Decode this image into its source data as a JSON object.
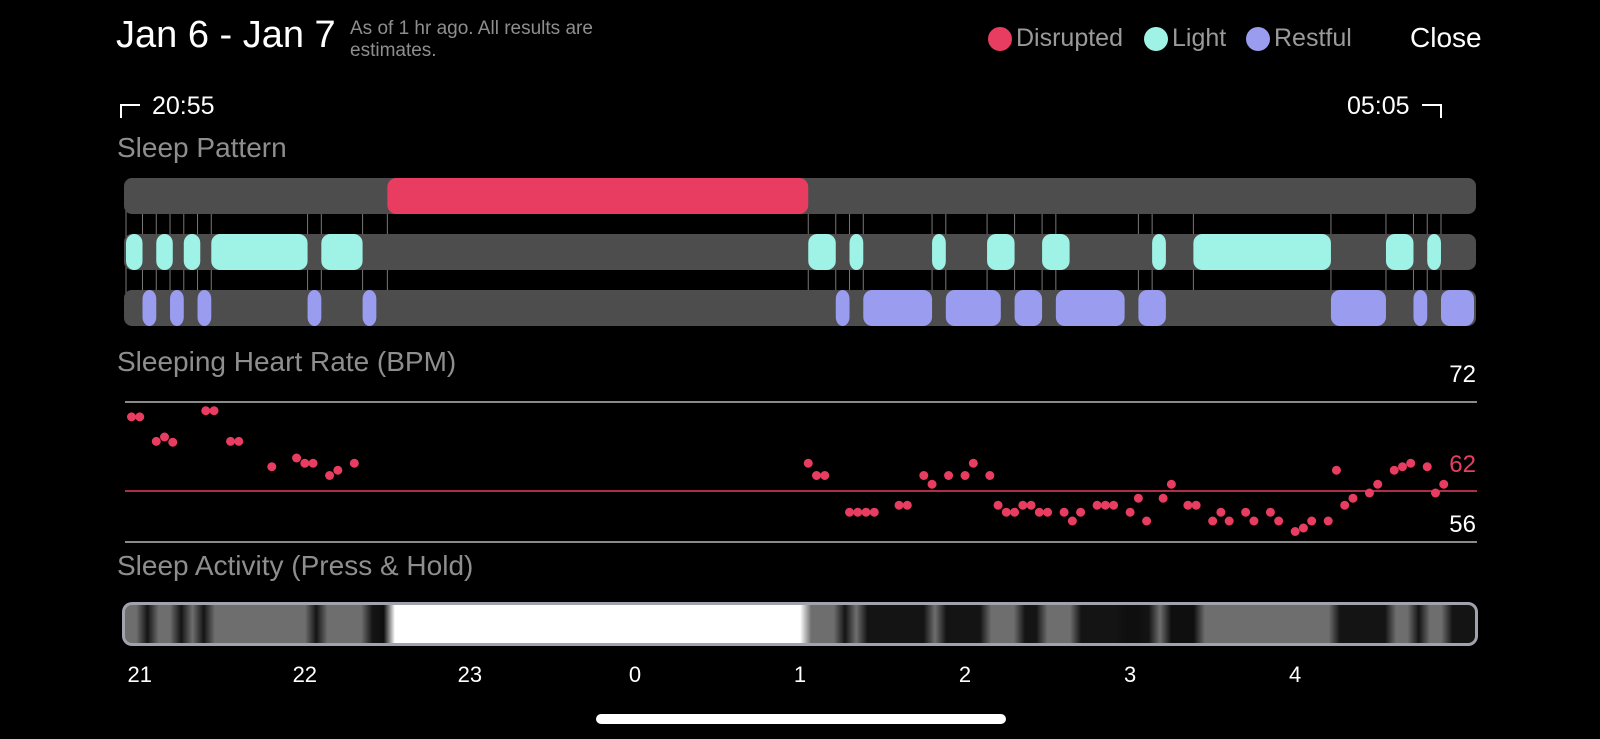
{
  "header": {
    "title": "Jan 6 - Jan 7",
    "subtitle": "As of 1 hr ago. All results are estimates.",
    "close_label": "Close"
  },
  "legend": [
    {
      "label": "Disrupted",
      "color": "#e83d61"
    },
    {
      "label": "Light",
      "color": "#9ef3e6"
    },
    {
      "label": "Restful",
      "color": "#9a9cf0"
    }
  ],
  "range": {
    "start": "20:55",
    "end": "05:05"
  },
  "sleep_pattern": {
    "title": "Sleep Pattern",
    "track_color": "#4d4d4d",
    "segments": [
      {
        "stage": "disrupted",
        "start": "22:30",
        "end": "01:03"
      },
      {
        "stage": "light",
        "start": "20:55",
        "end": "21:01"
      },
      {
        "stage": "light",
        "start": "21:06",
        "end": "21:12"
      },
      {
        "stage": "light",
        "start": "21:16",
        "end": "21:22"
      },
      {
        "stage": "light",
        "start": "21:26",
        "end": "22:01"
      },
      {
        "stage": "light",
        "start": "22:06",
        "end": "22:21"
      },
      {
        "stage": "light",
        "start": "01:03",
        "end": "01:13"
      },
      {
        "stage": "light",
        "start": "01:18",
        "end": "01:23"
      },
      {
        "stage": "light",
        "start": "01:48",
        "end": "01:53"
      },
      {
        "stage": "light",
        "start": "02:08",
        "end": "02:18"
      },
      {
        "stage": "light",
        "start": "02:28",
        "end": "02:38"
      },
      {
        "stage": "light",
        "start": "03:08",
        "end": "03:13"
      },
      {
        "stage": "light",
        "start": "03:23",
        "end": "04:13"
      },
      {
        "stage": "light",
        "start": "04:33",
        "end": "04:43"
      },
      {
        "stage": "light",
        "start": "04:48",
        "end": "04:53"
      },
      {
        "stage": "restful",
        "start": "21:01",
        "end": "21:06"
      },
      {
        "stage": "restful",
        "start": "21:11",
        "end": "21:16"
      },
      {
        "stage": "restful",
        "start": "21:21",
        "end": "21:26"
      },
      {
        "stage": "restful",
        "start": "22:01",
        "end": "22:06"
      },
      {
        "stage": "restful",
        "start": "22:21",
        "end": "22:26"
      },
      {
        "stage": "restful",
        "start": "01:13",
        "end": "01:18"
      },
      {
        "stage": "restful",
        "start": "01:23",
        "end": "01:48"
      },
      {
        "stage": "restful",
        "start": "01:53",
        "end": "02:13"
      },
      {
        "stage": "restful",
        "start": "02:18",
        "end": "02:28"
      },
      {
        "stage": "restful",
        "start": "02:33",
        "end": "02:58"
      },
      {
        "stage": "restful",
        "start": "03:03",
        "end": "03:13"
      },
      {
        "stage": "restful",
        "start": "04:13",
        "end": "04:33"
      },
      {
        "stage": "restful",
        "start": "04:43",
        "end": "04:48"
      },
      {
        "stage": "restful",
        "start": "04:53",
        "end": "05:05"
      }
    ]
  },
  "heart_rate": {
    "title": "Sleeping Heart Rate (BPM)",
    "max_label": "72",
    "avg_label": "62",
    "min_label": "56"
  },
  "chart_data": {
    "type": "scatter",
    "title": "Sleeping Heart Rate (BPM)",
    "xlabel": "",
    "ylabel": "",
    "x_unit": "hour of day",
    "ylim": [
      56,
      72
    ],
    "reference_lines": [
      72,
      62,
      56
    ],
    "x": [
      20.95,
      21.0,
      21.1,
      21.15,
      21.2,
      21.4,
      21.45,
      21.55,
      21.6,
      21.8,
      21.95,
      22.0,
      22.05,
      22.15,
      22.2,
      22.3,
      1.05,
      1.1,
      1.15,
      1.3,
      1.35,
      1.4,
      1.45,
      1.6,
      1.65,
      1.75,
      1.8,
      1.9,
      2.0,
      2.05,
      2.15,
      2.2,
      2.25,
      2.3,
      2.35,
      2.4,
      2.45,
      2.5,
      2.6,
      2.65,
      2.7,
      2.8,
      2.85,
      2.9,
      3.0,
      3.05,
      3.1,
      3.2,
      3.25,
      3.35,
      3.4,
      3.5,
      3.55,
      3.6,
      3.7,
      3.75,
      3.85,
      3.9,
      4.0,
      4.05,
      4.1,
      4.2,
      4.25,
      4.3,
      4.35,
      4.45,
      4.5,
      4.6,
      4.65,
      4.7,
      4.8,
      4.85,
      4.9
    ],
    "y": [
      70.3,
      70.3,
      67.5,
      68.0,
      67.4,
      71.0,
      71.0,
      67.5,
      67.5,
      64.6,
      65.6,
      65.0,
      65.0,
      63.6,
      64.2,
      65.0,
      65.0,
      63.6,
      63.6,
      59.4,
      59.4,
      59.4,
      59.4,
      60.2,
      60.2,
      63.6,
      62.6,
      63.6,
      63.6,
      65.0,
      63.6,
      60.2,
      59.4,
      59.4,
      60.2,
      60.2,
      59.4,
      59.4,
      59.4,
      58.4,
      59.4,
      60.2,
      60.2,
      60.2,
      59.4,
      61.0,
      58.4,
      61.0,
      62.6,
      60.2,
      60.2,
      58.4,
      59.4,
      58.4,
      59.4,
      58.4,
      59.4,
      58.4,
      57.2,
      57.6,
      58.4,
      58.4,
      64.2,
      60.2,
      61.0,
      61.6,
      62.6,
      64.2,
      64.6,
      65.0,
      64.6,
      61.6,
      62.6
    ]
  },
  "activity": {
    "title": "Sleep Activity (Press & Hold)",
    "hour_ticks": [
      "21",
      "22",
      "23",
      "0",
      "1",
      "2",
      "3",
      "4"
    ]
  },
  "colors": {
    "disrupted": "#e83d61",
    "light": "#9ef3e6",
    "restful": "#9a9cf0",
    "avg_line": "#e83d61",
    "grid_line": "#8a8a8a"
  }
}
